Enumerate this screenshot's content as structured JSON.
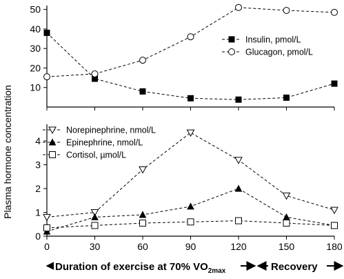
{
  "y_label": "Plasma hormone concentration",
  "x_band": {
    "exercise_prefix": "Duration of exercise at 70% VO",
    "exercise_sub": "2max",
    "recovery": "Recovery"
  },
  "chart_data": [
    {
      "type": "line",
      "panel": "top",
      "x": [
        0,
        30,
        60,
        90,
        120,
        150,
        180
      ],
      "xlim": [
        0,
        180
      ],
      "x_ticks": [],
      "ylim": [
        0,
        52
      ],
      "y_ticks": [
        10,
        20,
        30,
        40,
        50
      ],
      "legend_position": "right",
      "series": [
        {
          "name": "Insulin, pmol/L",
          "marker": "filled-square",
          "color": "#000000",
          "values": [
            38,
            14.5,
            8,
            4.5,
            3.8,
            4.8,
            12
          ]
        },
        {
          "name": "Glucagon, pmol/L",
          "marker": "open-circle",
          "color": "#000000",
          "values": [
            15.5,
            17,
            24,
            36,
            51,
            49.5,
            48.5
          ]
        }
      ]
    },
    {
      "type": "line",
      "panel": "bottom",
      "x": [
        0,
        30,
        60,
        90,
        120,
        150,
        180
      ],
      "xlim": [
        0,
        180
      ],
      "x_ticks": [
        0,
        30,
        60,
        90,
        120,
        150,
        180
      ],
      "ylim": [
        0,
        4.7
      ],
      "y_ticks": [
        0,
        1,
        2,
        3,
        4
      ],
      "legend_position": "top-left",
      "series": [
        {
          "name": "Norepinephrine, nmol/L",
          "marker": "open-triangle-down",
          "color": "#000000",
          "values": [
            0.8,
            1.0,
            2.8,
            4.35,
            3.2,
            1.7,
            1.1
          ]
        },
        {
          "name": "Epinephrine, nmol/L",
          "marker": "filled-triangle-up",
          "color": "#000000",
          "values": [
            0.2,
            0.8,
            0.9,
            1.25,
            2.0,
            0.8,
            0.45
          ]
        },
        {
          "name": "Cortisol, µmol/L",
          "marker": "open-square",
          "color": "#000000",
          "values": [
            0.35,
            0.45,
            0.55,
            0.6,
            0.65,
            0.55,
            0.45
          ]
        }
      ]
    }
  ]
}
